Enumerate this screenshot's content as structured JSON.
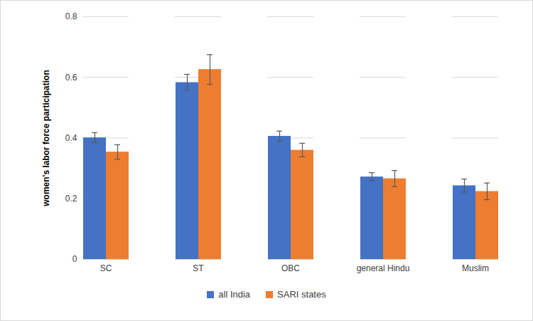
{
  "chart_data": {
    "type": "bar",
    "y_label": "women's labor force participation",
    "categories": [
      "SC",
      "ST",
      "OBC",
      "general Hindu",
      "Muslim"
    ],
    "series": [
      {
        "name": "all India",
        "color": "#4472c4",
        "values": [
          0.401,
          0.583,
          0.406,
          0.272,
          0.243
        ],
        "error_low": [
          0.385,
          0.558,
          0.39,
          0.26,
          0.222
        ],
        "error_high": [
          0.418,
          0.61,
          0.423,
          0.286,
          0.265
        ]
      },
      {
        "name": "SARI states",
        "color": "#ed7d31",
        "values": [
          0.354,
          0.626,
          0.36,
          0.266,
          0.224
        ],
        "error_low": [
          0.33,
          0.577,
          0.338,
          0.24,
          0.197
        ],
        "error_high": [
          0.378,
          0.675,
          0.383,
          0.293,
          0.252
        ]
      }
    ],
    "ylim": [
      0,
      0.8
    ],
    "yticks": [
      0,
      0.2,
      0.4,
      0.6,
      0.8
    ],
    "grid": true,
    "legend": "bottom"
  }
}
